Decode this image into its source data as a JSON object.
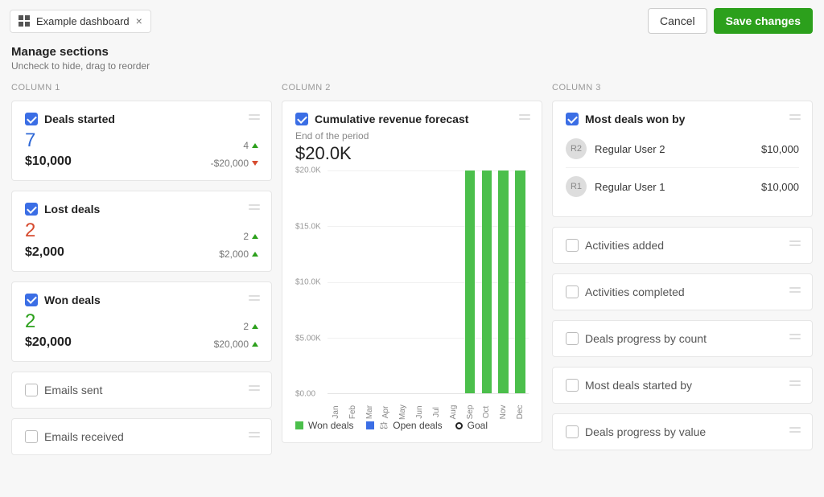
{
  "colors": {
    "page_bg": "#f7f7f7",
    "card_bg": "#ffffff",
    "card_border": "#e6e6e6",
    "accent_blue": "#3b6ee5",
    "accent_green": "#2ca01c",
    "accent_red": "#d64b2f",
    "text_muted": "#888888",
    "bar_green": "#4bbf4b"
  },
  "header": {
    "title": "Example dashboard",
    "cancel": "Cancel",
    "save": "Save changes"
  },
  "subheader": {
    "title": "Manage sections",
    "hint": "Uncheck to hide, drag to reorder"
  },
  "columns": {
    "c1": "COLUMN 1",
    "c2": "COLUMN 2",
    "c3": "COLUMN 3"
  },
  "col1": {
    "deals_started": {
      "title": "Deals started",
      "count": "7",
      "amount": "$10,000",
      "delta_count": "4",
      "delta_count_dir": "up",
      "delta_amount": "-$20,000",
      "delta_amount_dir": "down"
    },
    "lost_deals": {
      "title": "Lost deals",
      "count": "2",
      "amount": "$2,000",
      "delta_count": "2",
      "delta_count_dir": "up",
      "delta_amount": "$2,000",
      "delta_amount_dir": "up"
    },
    "won_deals": {
      "title": "Won deals",
      "count": "2",
      "amount": "$20,000",
      "delta_count": "2",
      "delta_count_dir": "up",
      "delta_amount": "$20,000",
      "delta_amount_dir": "up"
    },
    "emails_sent": {
      "title": "Emails sent"
    },
    "emails_received": {
      "title": "Emails received"
    }
  },
  "col2": {
    "chart": {
      "title": "Cumulative revenue forecast",
      "note": "End of the period",
      "value": "$20.0K",
      "type": "bar",
      "ylabels": [
        "$20.0K",
        "$15.0K",
        "$10.0K",
        "$5.00K",
        "$0.00"
      ],
      "ylim": [
        0,
        20
      ],
      "categories": [
        "Jan",
        "Feb",
        "Mar",
        "Apr",
        "May",
        "Jun",
        "Jul",
        "Aug",
        "Sep",
        "Oct",
        "Nov",
        "Dec"
      ],
      "values": [
        0,
        0,
        0,
        0,
        0,
        0,
        0,
        0,
        20,
        20,
        20,
        20
      ],
      "bar_color": "#4bbf4b",
      "grid_color": "#f0f0f0",
      "background_color": "#ffffff",
      "legend": {
        "won": "Won deals",
        "open": "Open deals",
        "goal": "Goal"
      }
    }
  },
  "col3": {
    "most_won": {
      "title": "Most deals won by",
      "rows": [
        {
          "initials": "R2",
          "name": "Regular User 2",
          "value": "$10,000"
        },
        {
          "initials": "R1",
          "name": "Regular User 1",
          "value": "$10,000"
        }
      ]
    },
    "activities_added": {
      "title": "Activities added"
    },
    "activities_completed": {
      "title": "Activities completed"
    },
    "deals_progress_count": {
      "title": "Deals progress by count"
    },
    "most_deals_started": {
      "title": "Most deals started by"
    },
    "deals_progress_value": {
      "title": "Deals progress by value"
    }
  }
}
